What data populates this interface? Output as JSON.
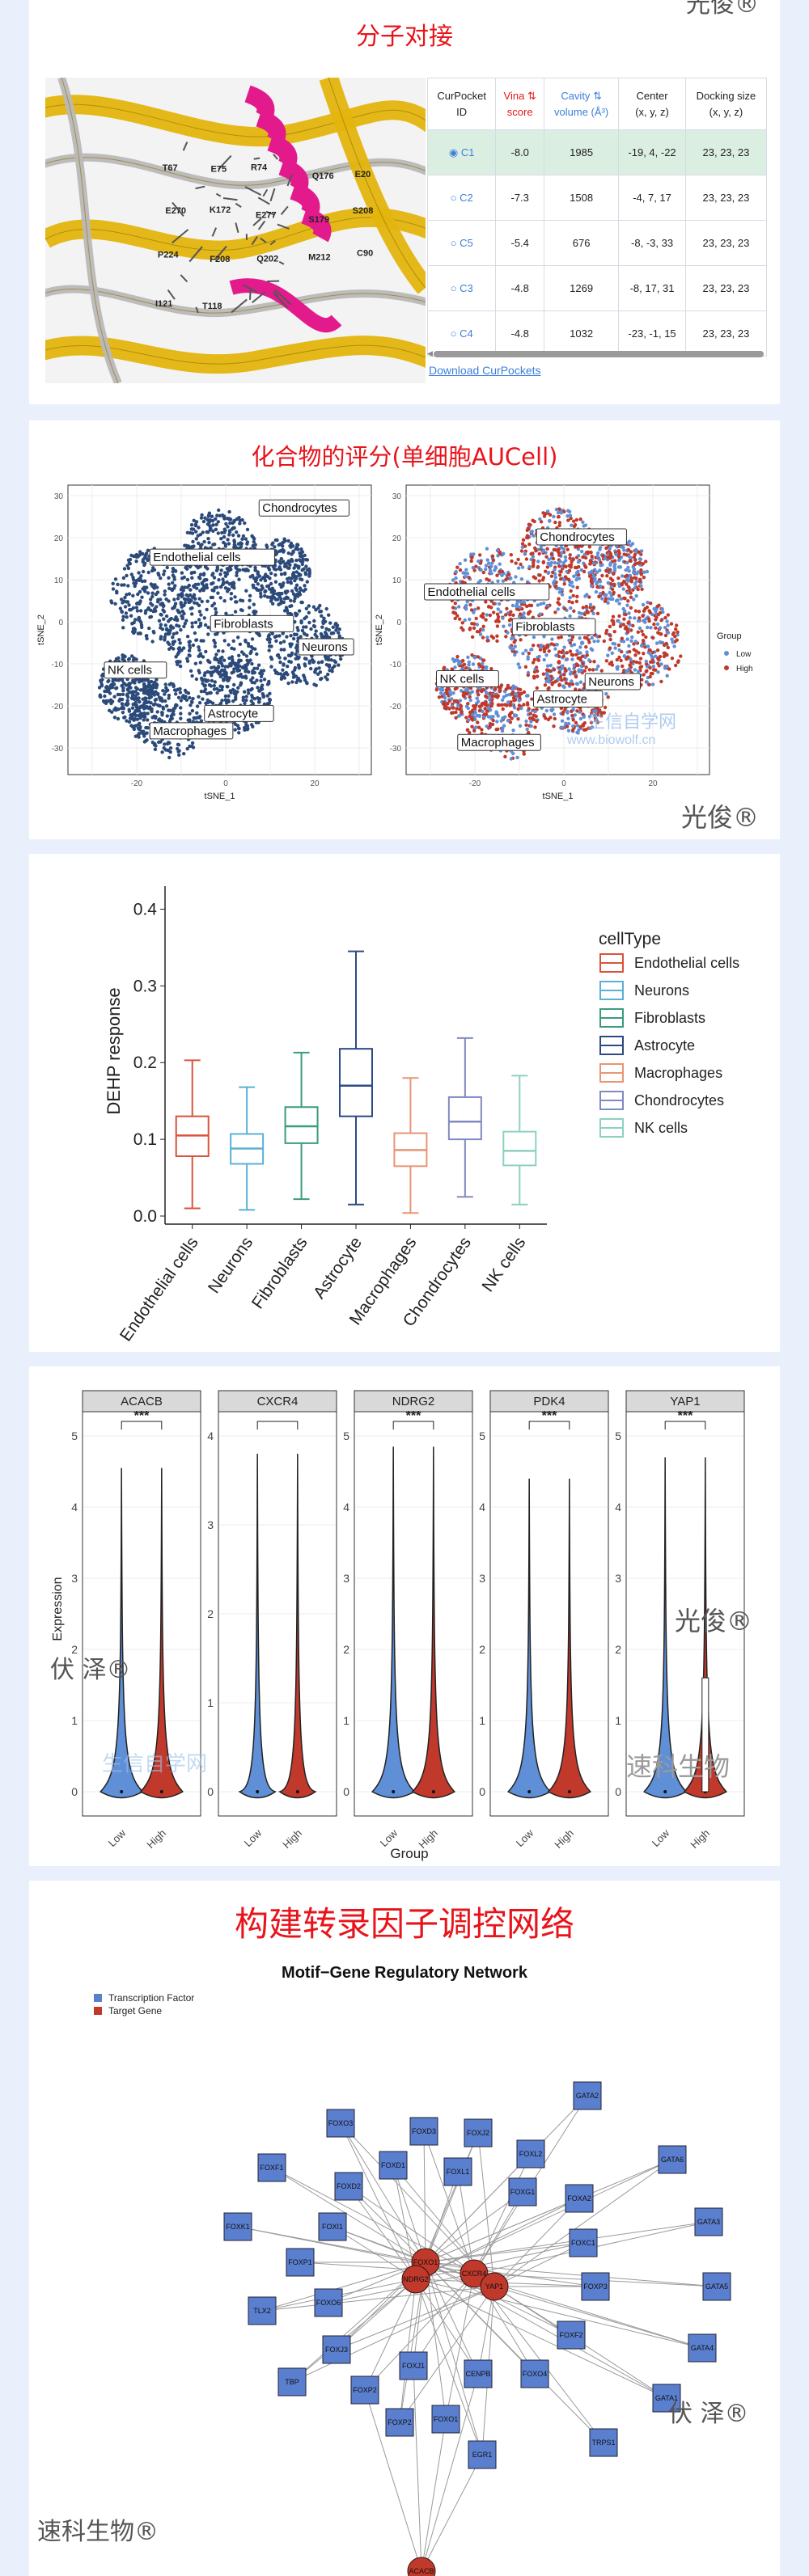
{
  "watermarks": {
    "guangjun": "光俊®",
    "fuze": "伏 泽®",
    "suke": "速科生物®",
    "suke_logo": "速科生物",
    "biowolf_logo": "生信自学网",
    "biowolf_url": "www.biowolf.cn"
  },
  "docking": {
    "title": "分子对接",
    "headers": [
      {
        "l1": "CurPocket",
        "l2": "ID"
      },
      {
        "l1": "Vina ⇅",
        "l2": "score"
      },
      {
        "l1": "Cavity ⇅",
        "l2": "volume (Å³)"
      },
      {
        "l1": "Center",
        "l2": "(x, y, z)"
      },
      {
        "l1": "Docking size",
        "l2": "(x, y, z)"
      }
    ],
    "rows": [
      {
        "id": "C1",
        "score": "-8.0",
        "volume": "1985",
        "center": "-19, 4, -22",
        "size": "23, 23, 23"
      },
      {
        "id": "C2",
        "score": "-7.3",
        "volume": "1508",
        "center": "-4, 7, 17",
        "size": "23, 23, 23"
      },
      {
        "id": "C5",
        "score": "-5.4",
        "volume": "676",
        "center": "-8, -3, 33",
        "size": "23, 23, 23"
      },
      {
        "id": "C3",
        "score": "-4.8",
        "volume": "1269",
        "center": "-8, 17, 31",
        "size": "23, 23, 23"
      },
      {
        "id": "C4",
        "score": "-4.8",
        "volume": "1032",
        "center": "-23, -1, 15",
        "size": "23, 23, 23"
      }
    ],
    "download": "Download CurPockets",
    "residues": [
      "T67",
      "E75",
      "R74",
      "Q176",
      "E20",
      "E270",
      "K172",
      "E277",
      "S179",
      "S208",
      "P224",
      "F208",
      "Q202",
      "M212",
      "C90",
      "I121",
      "T118"
    ],
    "colors": {
      "helix": "#e31a8c",
      "sheet": "#e3b40d"
    }
  },
  "aucell": {
    "title": "化合物的评分(单细胞AUCell)",
    "xlabel": "tSNE_1",
    "ylabel": "tSNE_2",
    "xticks": [
      "-20",
      "0",
      "20"
    ],
    "yticks": [
      "30",
      "20",
      "10",
      "0",
      "-10",
      "-20",
      "-30"
    ],
    "labels_left": [
      "Chondrocytes",
      "Endothelial cells",
      "Fibroblasts",
      "Neurons",
      "NK cells",
      "Astrocyte",
      "Macrophages"
    ],
    "labels_right": [
      "Chondrocytes",
      "Endothelial cells",
      "Fibroblasts",
      "Neurons",
      "NK cells",
      "Astrocyte",
      "Macrophages"
    ],
    "legend_title": "Group",
    "legend": [
      "Low",
      "High"
    ],
    "colors": {
      "low": "#5f8fd6",
      "high": "#c0392b",
      "dark": "#2b4a7a"
    }
  },
  "boxplot": {
    "chart_data": {
      "type": "box",
      "ylabel": "DEHP response",
      "ylim": [
        0,
        0.43
      ],
      "yticks": [
        "0.0",
        "0.1",
        "0.2",
        "0.3",
        "0.4"
      ],
      "categories": [
        "Endothelial cells",
        "Neurons",
        "Fibroblasts",
        "Astrocyte",
        "Macrophages",
        "Chondrocytes",
        "NK cells"
      ],
      "boxes": [
        {
          "min": 0.01,
          "q1": 0.078,
          "median": 0.105,
          "q3": 0.13,
          "max": 0.203
        },
        {
          "min": 0.008,
          "q1": 0.068,
          "median": 0.088,
          "q3": 0.107,
          "max": 0.168
        },
        {
          "min": 0.022,
          "q1": 0.095,
          "median": 0.117,
          "q3": 0.142,
          "max": 0.213
        },
        {
          "min": 0.015,
          "q1": 0.13,
          "median": 0.17,
          "q3": 0.218,
          "max": 0.345
        },
        {
          "min": 0.004,
          "q1": 0.065,
          "median": 0.086,
          "q3": 0.108,
          "max": 0.18
        },
        {
          "min": 0.025,
          "q1": 0.1,
          "median": 0.123,
          "q3": 0.155,
          "max": 0.232
        },
        {
          "min": 0.015,
          "q1": 0.066,
          "median": 0.085,
          "q3": 0.11,
          "max": 0.183
        }
      ],
      "legend_title": "cellType",
      "colors": [
        "#d9533c",
        "#5ab0d6",
        "#3a9c7e",
        "#2d4a84",
        "#e89575",
        "#8089c2",
        "#8ed0c1"
      ]
    }
  },
  "violin": {
    "ylabel": "Expression",
    "xlabel": "Group",
    "groups": [
      "Low",
      "High"
    ],
    "sig": "***",
    "panels": [
      {
        "gene": "ACACB",
        "ymax": 5,
        "yticks": [
          "0",
          "1",
          "2",
          "3",
          "4",
          "5"
        ],
        "sig": true,
        "top": 4.55
      },
      {
        "gene": "CXCR4",
        "ymax": 4,
        "yticks": [
          "0",
          "1",
          "2",
          "3",
          "4"
        ],
        "sig": false,
        "top": 3.8
      },
      {
        "gene": "NDRG2",
        "ymax": 5,
        "yticks": [
          "0",
          "1",
          "2",
          "3",
          "4",
          "5"
        ],
        "sig": true,
        "top": 4.85
      },
      {
        "gene": "PDK4",
        "ymax": 5,
        "yticks": [
          "0",
          "1",
          "2",
          "3",
          "4",
          "5"
        ],
        "sig": true,
        "top": 4.4
      },
      {
        "gene": "YAP1",
        "ymax": 5,
        "yticks": [
          "0",
          "1",
          "2",
          "3",
          "4",
          "5"
        ],
        "sig": true,
        "top": 4.7
      }
    ],
    "colors": {
      "low": "#5f8fd6",
      "high": "#c0392b"
    }
  },
  "network": {
    "title": "构建转录因子调控网络",
    "subtitle": "Motif−Gene Regulatory Network",
    "legend": [
      "Transcription Factor",
      "Target Gene"
    ],
    "colors": {
      "tf": "#5b7fcf",
      "target": "#c0392b"
    },
    "tf_nodes": [
      {
        "label": "GATA2",
        "x": 640,
        "y": 156
      },
      {
        "label": "FOXO3",
        "x": 335,
        "y": 190
      },
      {
        "label": "FOXD3",
        "x": 438,
        "y": 200
      },
      {
        "label": "FOXJ2",
        "x": 505,
        "y": 202
      },
      {
        "label": "FOXL2",
        "x": 570,
        "y": 228
      },
      {
        "label": "GATA6",
        "x": 745,
        "y": 235
      },
      {
        "label": "FOXF1",
        "x": 250,
        "y": 245
      },
      {
        "label": "FOXD1",
        "x": 400,
        "y": 242
      },
      {
        "label": "FOXL1",
        "x": 480,
        "y": 250
      },
      {
        "label": "FOXD2",
        "x": 345,
        "y": 268
      },
      {
        "label": "FOXG1",
        "x": 560,
        "y": 275
      },
      {
        "label": "FOXA2",
        "x": 630,
        "y": 283
      },
      {
        "label": "FOXK1",
        "x": 208,
        "y": 318
      },
      {
        "label": "FOXI1",
        "x": 325,
        "y": 318
      },
      {
        "label": "GATA3",
        "x": 790,
        "y": 312
      },
      {
        "label": "FOXC1",
        "x": 635,
        "y": 338
      },
      {
        "label": "FOXP1",
        "x": 285,
        "y": 362
      },
      {
        "label": "FOXP3",
        "x": 650,
        "y": 392
      },
      {
        "label": "GATA5",
        "x": 800,
        "y": 392
      },
      {
        "label": "TLX2",
        "x": 238,
        "y": 422
      },
      {
        "label": "FOXO6",
        "x": 320,
        "y": 412
      },
      {
        "label": "FOXJ3",
        "x": 330,
        "y": 470
      },
      {
        "label": "FOXF2",
        "x": 620,
        "y": 452
      },
      {
        "label": "GATA4",
        "x": 782,
        "y": 468
      },
      {
        "label": "FOXJ1",
        "x": 425,
        "y": 490
      },
      {
        "label": "CENPB",
        "x": 505,
        "y": 500
      },
      {
        "label": "FOXO4",
        "x": 575,
        "y": 500
      },
      {
        "label": "TBP",
        "x": 275,
        "y": 510
      },
      {
        "label": "FOXP2",
        "x": 365,
        "y": 520
      },
      {
        "label": "GATA1",
        "x": 738,
        "y": 530
      },
      {
        "label": "FOXO1",
        "x": 465,
        "y": 556
      },
      {
        "label": "FOXP2",
        "x": 408,
        "y": 560
      },
      {
        "label": "TRPS1",
        "x": 660,
        "y": 585
      },
      {
        "label": "EGR1",
        "x": 510,
        "y": 600
      }
    ],
    "target_nodes": [
      {
        "label": "FOXO1",
        "x": 440,
        "y": 362
      },
      {
        "label": "NDRG2",
        "x": 428,
        "y": 383
      },
      {
        "label": "CXCR4",
        "x": 500,
        "y": 376
      },
      {
        "label": "YAP1",
        "x": 525,
        "y": 392
      },
      {
        "label": "ACACB",
        "x": 435,
        "y": 744
      }
    ]
  }
}
